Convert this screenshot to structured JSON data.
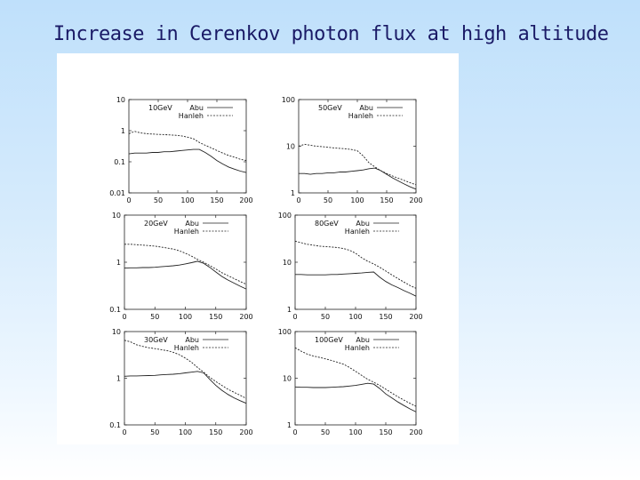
{
  "slide": {
    "title": "Increase in Cerenkov photon flux at high altitude"
  },
  "chart_data": [
    {
      "type": "line",
      "label": "10GeV",
      "yscale": "log",
      "ylim": [
        0.01,
        10
      ],
      "xlim": [
        0,
        200
      ],
      "xticks": [
        "0",
        "50",
        "100",
        "150",
        "200"
      ],
      "yticks": [
        "10",
        "1",
        "0.1",
        "0.01"
      ],
      "yticks_values": [
        10,
        1,
        0.1,
        0.01
      ],
      "x": [
        0,
        10,
        20,
        30,
        40,
        50,
        60,
        70,
        80,
        90,
        100,
        110,
        120,
        130,
        140,
        150,
        160,
        170,
        180,
        190,
        200
      ],
      "series": [
        {
          "name": "Abu",
          "style": "solid",
          "values": [
            0.18,
            0.19,
            0.19,
            0.19,
            0.2,
            0.2,
            0.21,
            0.21,
            0.22,
            0.23,
            0.24,
            0.25,
            0.25,
            0.2,
            0.15,
            0.11,
            0.085,
            0.068,
            0.058,
            0.05,
            0.045
          ]
        },
        {
          "name": "Hanleh",
          "style": "dashed",
          "values": [
            0.8,
            0.95,
            0.85,
            0.8,
            0.78,
            0.76,
            0.75,
            0.73,
            0.71,
            0.68,
            0.62,
            0.55,
            0.42,
            0.34,
            0.28,
            0.23,
            0.19,
            0.16,
            0.14,
            0.12,
            0.11
          ]
        }
      ]
    },
    {
      "type": "line",
      "label": "50GeV",
      "yscale": "log",
      "ylim": [
        1,
        100
      ],
      "xlim": [
        0,
        200
      ],
      "xticks": [
        "0",
        "50",
        "100",
        "150",
        "200"
      ],
      "yticks": [
        "100",
        "10",
        "1"
      ],
      "yticks_values": [
        100,
        10,
        1
      ],
      "x": [
        0,
        10,
        20,
        30,
        40,
        50,
        60,
        70,
        80,
        90,
        100,
        110,
        120,
        130,
        140,
        150,
        160,
        170,
        180,
        190,
        200
      ],
      "series": [
        {
          "name": "Abu",
          "style": "solid",
          "values": [
            2.6,
            2.6,
            2.5,
            2.6,
            2.6,
            2.7,
            2.7,
            2.8,
            2.8,
            2.9,
            3.0,
            3.1,
            3.3,
            3.4,
            3.0,
            2.5,
            2.1,
            1.8,
            1.55,
            1.35,
            1.2
          ]
        },
        {
          "name": "Hanleh",
          "style": "dashed",
          "values": [
            10,
            11,
            10.5,
            10,
            9.8,
            9.5,
            9.2,
            9,
            8.8,
            8.5,
            8,
            6.2,
            4.4,
            3.6,
            3.0,
            2.6,
            2.3,
            2.05,
            1.85,
            1.65,
            1.5
          ]
        }
      ]
    },
    {
      "type": "line",
      "label": "20GeV",
      "yscale": "log",
      "ylim": [
        0.1,
        10
      ],
      "xlim": [
        0,
        200
      ],
      "xticks": [
        "0",
        "50",
        "100",
        "150",
        "200"
      ],
      "yticks": [
        "10",
        "1",
        "0.1"
      ],
      "yticks_values": [
        10,
        1,
        0.1
      ],
      "x": [
        0,
        10,
        20,
        30,
        40,
        50,
        60,
        70,
        80,
        90,
        100,
        110,
        120,
        130,
        140,
        150,
        160,
        170,
        180,
        190,
        200
      ],
      "series": [
        {
          "name": "Abu",
          "style": "solid",
          "values": [
            0.75,
            0.76,
            0.76,
            0.77,
            0.77,
            0.78,
            0.8,
            0.82,
            0.84,
            0.87,
            0.92,
            0.98,
            1.05,
            0.95,
            0.78,
            0.62,
            0.5,
            0.42,
            0.36,
            0.31,
            0.27
          ]
        },
        {
          "name": "Hanleh",
          "style": "dashed",
          "values": [
            2.4,
            2.4,
            2.35,
            2.3,
            2.25,
            2.2,
            2.1,
            2.0,
            1.9,
            1.75,
            1.55,
            1.35,
            1.15,
            1.0,
            0.85,
            0.72,
            0.6,
            0.52,
            0.45,
            0.39,
            0.34
          ]
        }
      ]
    },
    {
      "type": "line",
      "label": "80GeV",
      "yscale": "log",
      "ylim": [
        1,
        100
      ],
      "xlim": [
        0,
        200
      ],
      "xticks": [
        "0",
        "50",
        "100",
        "150",
        "200"
      ],
      "yticks": [
        "100",
        "10",
        "1"
      ],
      "yticks_values": [
        100,
        10,
        1
      ],
      "x": [
        0,
        10,
        20,
        30,
        40,
        50,
        60,
        70,
        80,
        90,
        100,
        110,
        120,
        130,
        140,
        150,
        160,
        170,
        180,
        190,
        200
      ],
      "series": [
        {
          "name": "Abu",
          "style": "solid",
          "values": [
            5.5,
            5.5,
            5.4,
            5.4,
            5.4,
            5.4,
            5.5,
            5.5,
            5.6,
            5.7,
            5.8,
            5.9,
            6.1,
            6.2,
            4.8,
            3.9,
            3.3,
            2.9,
            2.5,
            2.2,
            1.9
          ]
        },
        {
          "name": "Hanleh",
          "style": "dashed",
          "values": [
            28,
            26,
            24,
            23,
            22,
            21.5,
            21,
            20.5,
            19.5,
            18,
            15.5,
            12.5,
            10.5,
            9.2,
            7.8,
            6.5,
            5.4,
            4.5,
            3.8,
            3.2,
            2.8
          ]
        }
      ]
    },
    {
      "type": "line",
      "label": "30GeV",
      "yscale": "log",
      "ylim": [
        0.1,
        10
      ],
      "xlim": [
        0,
        200
      ],
      "xticks": [
        "0",
        "50",
        "100",
        "150",
        "200"
      ],
      "yticks": [
        "10",
        "1",
        "0.1"
      ],
      "yticks_values": [
        10,
        1,
        0.1
      ],
      "x": [
        0,
        10,
        20,
        30,
        40,
        50,
        60,
        70,
        80,
        90,
        100,
        110,
        120,
        130,
        140,
        150,
        160,
        170,
        180,
        190,
        200
      ],
      "series": [
        {
          "name": "Abu",
          "style": "solid",
          "values": [
            1.1,
            1.12,
            1.12,
            1.13,
            1.14,
            1.15,
            1.18,
            1.2,
            1.22,
            1.25,
            1.3,
            1.35,
            1.4,
            1.3,
            0.95,
            0.7,
            0.55,
            0.45,
            0.38,
            0.33,
            0.29
          ]
        },
        {
          "name": "Hanleh",
          "style": "dashed",
          "values": [
            6.5,
            6,
            5.2,
            4.8,
            4.5,
            4.3,
            4.1,
            3.9,
            3.6,
            3.2,
            2.7,
            2.2,
            1.7,
            1.35,
            1.05,
            0.85,
            0.7,
            0.58,
            0.5,
            0.43,
            0.37
          ]
        }
      ]
    },
    {
      "type": "line",
      "label": "100GeV",
      "yscale": "log",
      "ylim": [
        1,
        100
      ],
      "xlim": [
        0,
        200
      ],
      "xticks": [
        "0",
        "50",
        "100",
        "150",
        "200"
      ],
      "yticks": [
        "100",
        "10",
        "1"
      ],
      "yticks_values": [
        100,
        10,
        1
      ],
      "x": [
        0,
        10,
        20,
        30,
        40,
        50,
        60,
        70,
        80,
        90,
        100,
        110,
        120,
        130,
        140,
        150,
        160,
        170,
        180,
        190,
        200
      ],
      "series": [
        {
          "name": "Abu",
          "style": "solid",
          "values": [
            6.5,
            6.4,
            6.4,
            6.3,
            6.3,
            6.3,
            6.4,
            6.5,
            6.6,
            6.8,
            7.0,
            7.4,
            7.8,
            7.5,
            6.0,
            4.6,
            3.8,
            3.1,
            2.6,
            2.2,
            1.9
          ]
        },
        {
          "name": "Hanleh",
          "style": "dashed",
          "values": [
            45,
            38,
            33,
            30,
            28,
            26,
            24,
            22,
            20,
            17,
            14,
            11.5,
            9.5,
            8.2,
            7.0,
            5.8,
            4.8,
            4.0,
            3.4,
            2.9,
            2.5
          ]
        }
      ]
    }
  ]
}
